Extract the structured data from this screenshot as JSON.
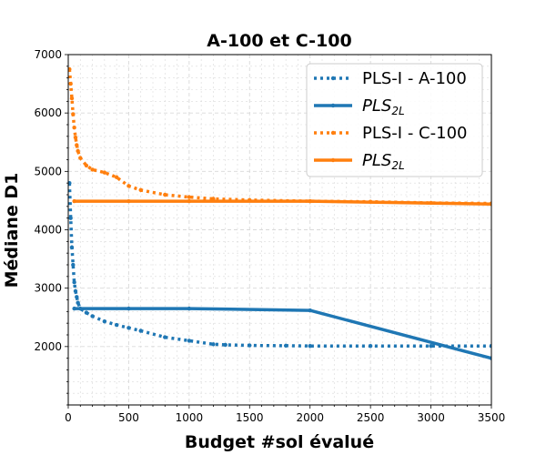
{
  "chart_data": {
    "type": "line",
    "title": "A-100 et C-100",
    "xlabel": "Budget #sol évalué",
    "ylabel": "Médiane D1",
    "xlim": [
      0,
      3500
    ],
    "ylim": [
      1000,
      7000
    ],
    "xticks": [
      0,
      500,
      1000,
      1500,
      2000,
      2500,
      3000,
      3500
    ],
    "yticks": [
      2000,
      3000,
      4000,
      5000,
      6000,
      7000
    ],
    "grid": true,
    "legend_position": "top-right",
    "series": [
      {
        "name": "PLS-I - A-100",
        "color": "#1f77b4",
        "style": "dotted",
        "x": [
          10,
          20,
          30,
          40,
          50,
          60,
          70,
          80,
          100,
          150,
          200,
          300,
          400,
          500,
          600,
          800,
          1000,
          1200,
          1300,
          1500,
          1800,
          2000,
          2500,
          3000,
          3500
        ],
        "y": [
          4800,
          4200,
          3700,
          3400,
          3100,
          2950,
          2850,
          2750,
          2650,
          2580,
          2520,
          2430,
          2370,
          2320,
          2270,
          2160,
          2100,
          2040,
          2030,
          2020,
          2015,
          2010,
          2010,
          2010,
          2010
        ]
      },
      {
        "name": "PLS",
        "name_sub": "2L",
        "color": "#1f77b4",
        "style": "solid",
        "x": [
          50,
          500,
          1000,
          2000,
          3500
        ],
        "y": [
          2650,
          2650,
          2650,
          2620,
          1800
        ]
      },
      {
        "name": "PLS-I - C-100",
        "color": "#ff7f0e",
        "style": "dotted",
        "x": [
          10,
          20,
          30,
          40,
          50,
          60,
          70,
          80,
          100,
          150,
          200,
          300,
          400,
          500,
          600,
          800,
          1000,
          1200,
          1500,
          2000,
          2500,
          3000,
          3500
        ],
        "y": [
          6750,
          6500,
          6250,
          5980,
          5750,
          5580,
          5450,
          5350,
          5230,
          5100,
          5030,
          4980,
          4900,
          4750,
          4680,
          4600,
          4560,
          4530,
          4510,
          4490,
          4480,
          4460,
          4450
        ]
      },
      {
        "name": "PLS",
        "name_sub": "2L",
        "color": "#ff7f0e",
        "style": "solid",
        "x": [
          50,
          500,
          1000,
          2000,
          3500
        ],
        "y": [
          4490,
          4490,
          4490,
          4490,
          4440
        ]
      }
    ]
  }
}
